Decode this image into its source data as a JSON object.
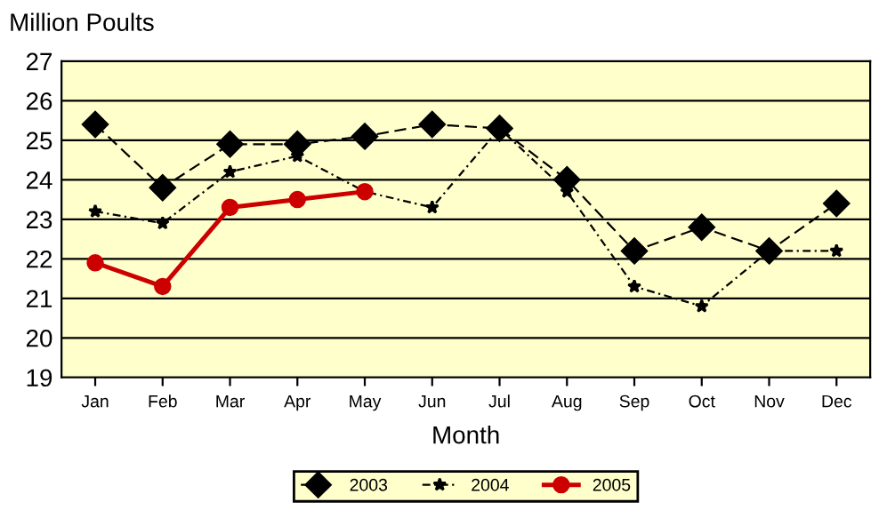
{
  "chart_data": {
    "type": "line",
    "ylabel": "Million Poults",
    "xlabel": "Month",
    "categories": [
      "Jan",
      "Feb",
      "Mar",
      "Apr",
      "May",
      "Jun",
      "Jul",
      "Aug",
      "Sep",
      "Oct",
      "Nov",
      "Dec"
    ],
    "series": [
      {
        "name": "2003",
        "color": "#000000",
        "marker": "diamond",
        "line_style": "dashed",
        "values": [
          25.4,
          23.8,
          24.9,
          24.9,
          25.1,
          25.4,
          25.3,
          24.0,
          22.2,
          22.8,
          22.2,
          23.4
        ]
      },
      {
        "name": "2004",
        "color": "#000000",
        "marker": "star",
        "line_style": "dotted",
        "values": [
          23.2,
          22.9,
          24.2,
          24.6,
          23.7,
          23.3,
          25.3,
          23.7,
          21.3,
          20.8,
          22.2,
          22.2
        ]
      },
      {
        "name": "2005",
        "color": "#cc0000",
        "marker": "circle",
        "line_style": "solid",
        "values": [
          21.9,
          21.3,
          23.3,
          23.5,
          23.7,
          null,
          null,
          null,
          null,
          null,
          null,
          null
        ]
      }
    ],
    "ylim": [
      19,
      27
    ],
    "yticks": [
      19,
      20,
      21,
      22,
      23,
      24,
      25,
      26,
      27
    ],
    "grid": "y",
    "legend": "bottom"
  }
}
